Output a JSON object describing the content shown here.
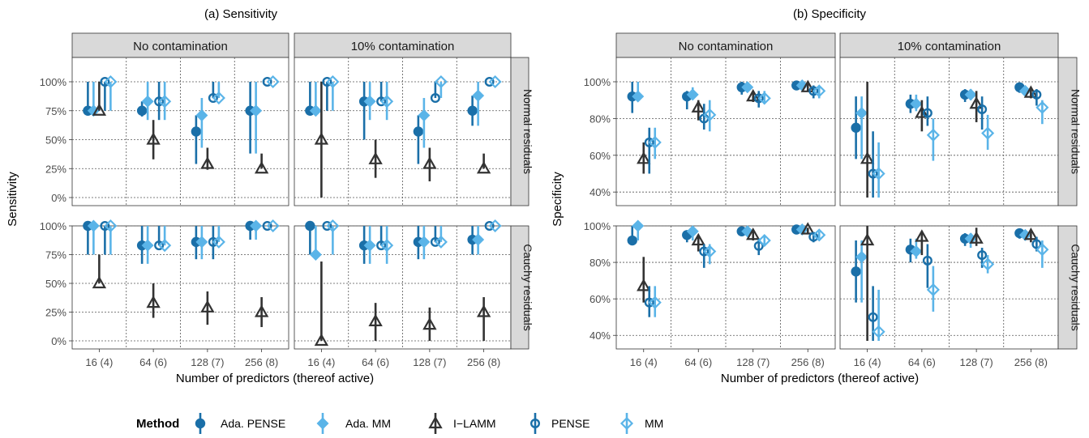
{
  "legend": {
    "title": "Method",
    "items": [
      {
        "label": "Ada. PENSE",
        "color": "#1a6fa8",
        "marker": "filled-circle"
      },
      {
        "label": "Ada. MM",
        "color": "#5ab4e8",
        "marker": "filled-diamond"
      },
      {
        "label": "I−LAMM",
        "color": "#333333",
        "marker": "open-triangle"
      },
      {
        "label": "PENSE",
        "color": "#1a6fa8",
        "marker": "open-circle"
      },
      {
        "label": "MM",
        "color": "#5ab4e8",
        "marker": "open-diamond"
      }
    ]
  },
  "chart_data": [
    {
      "type": "scatter",
      "title": "(a) Sensitivity",
      "xlabel": "Number of predictors (thereof active)",
      "ylabel": "Sensitivity",
      "categories": [
        "16 (4)",
        "64 (6)",
        "128 (7)",
        "256 (8)"
      ],
      "ylim": [
        0,
        1
      ],
      "yticks": [
        "0%",
        "25%",
        "50%",
        "75%",
        "100%"
      ],
      "col_strips": [
        "No contamination",
        "10% contamination"
      ],
      "row_strips": [
        "Normal residuals",
        "Cauchy residuals"
      ],
      "grid": "dotted",
      "series": [
        "Ada. PENSE",
        "Ada. MM",
        "I−LAMM",
        "PENSE",
        "MM"
      ],
      "panels": [
        {
          "row": 0,
          "col": 0,
          "values": [
            [
              [
                0.75,
                0.75,
                1.0
              ],
              [
                0.75,
                0.75,
                1.0
              ],
              [
                0.75,
                0.75,
                1.0
              ],
              [
                1.0,
                0.75,
                1.0
              ],
              [
                1.0,
                0.75,
                1.0
              ]
            ],
            [
              [
                0.75,
                0.7,
                0.83
              ],
              [
                0.83,
                0.67,
                1.0
              ],
              [
                0.5,
                0.33,
                0.67
              ],
              [
                0.83,
                0.67,
                1.0
              ],
              [
                0.83,
                0.67,
                1.0
              ]
            ],
            [
              [
                0.57,
                0.29,
                0.71
              ],
              [
                0.71,
                0.43,
                0.86
              ],
              [
                0.29,
                0.24,
                0.43
              ],
              [
                0.86,
                0.86,
                1.0
              ],
              [
                0.86,
                0.86,
                1.0
              ]
            ],
            [
              [
                0.75,
                0.38,
                1.0
              ],
              [
                0.75,
                0.38,
                1.0
              ],
              [
                0.25,
                0.25,
                0.38
              ],
              [
                1.0,
                1.0,
                1.0
              ],
              [
                1.0,
                1.0,
                1.0
              ]
            ]
          ]
        },
        {
          "row": 0,
          "col": 1,
          "values": [
            [
              [
                0.75,
                0.75,
                1.0
              ],
              [
                0.75,
                0.75,
                1.0
              ],
              [
                0.5,
                0.0,
                1.0
              ],
              [
                1.0,
                0.75,
                1.0
              ],
              [
                1.0,
                0.75,
                1.0
              ]
            ],
            [
              [
                0.83,
                0.5,
                1.0
              ],
              [
                0.83,
                0.67,
                1.0
              ],
              [
                0.33,
                0.17,
                0.5
              ],
              [
                0.83,
                0.83,
                1.0
              ],
              [
                0.83,
                0.67,
                1.0
              ]
            ],
            [
              [
                0.57,
                0.29,
                0.71
              ],
              [
                0.71,
                0.43,
                0.86
              ],
              [
                0.29,
                0.14,
                0.43
              ],
              [
                0.86,
                0.86,
                1.0
              ],
              [
                1.0,
                0.86,
                1.0
              ]
            ],
            [
              [
                0.75,
                0.62,
                0.88
              ],
              [
                0.88,
                0.62,
                1.0
              ],
              [
                0.25,
                0.25,
                0.38
              ],
              [
                1.0,
                1.0,
                1.0
              ],
              [
                1.0,
                1.0,
                1.0
              ]
            ]
          ]
        },
        {
          "row": 1,
          "col": 0,
          "values": [
            [
              [
                1.0,
                0.75,
                1.0
              ],
              [
                1.0,
                0.75,
                1.0
              ],
              [
                0.5,
                0.5,
                0.75
              ],
              [
                1.0,
                0.75,
                1.0
              ],
              [
                1.0,
                0.75,
                1.0
              ]
            ],
            [
              [
                0.83,
                0.67,
                1.0
              ],
              [
                0.83,
                0.67,
                1.0
              ],
              [
                0.33,
                0.2,
                0.5
              ],
              [
                0.83,
                0.83,
                1.0
              ],
              [
                0.83,
                0.83,
                1.0
              ]
            ],
            [
              [
                0.86,
                0.71,
                1.0
              ],
              [
                0.86,
                0.71,
                1.0
              ],
              [
                0.29,
                0.14,
                0.43
              ],
              [
                0.86,
                0.71,
                1.0
              ],
              [
                0.86,
                0.86,
                1.0
              ]
            ],
            [
              [
                1.0,
                0.88,
                1.0
              ],
              [
                1.0,
                0.88,
                1.0
              ],
              [
                0.25,
                0.12,
                0.38
              ],
              [
                1.0,
                1.0,
                1.0
              ],
              [
                1.0,
                1.0,
                1.0
              ]
            ]
          ]
        },
        {
          "row": 1,
          "col": 1,
          "values": [
            [
              [
                1.0,
                0.75,
                1.0
              ],
              [
                0.75,
                0.75,
                1.0
              ],
              [
                0.0,
                0.0,
                0.69
              ],
              [
                1.0,
                1.0,
                1.0
              ],
              [
                1.0,
                0.75,
                1.0
              ]
            ],
            [
              [
                0.83,
                0.67,
                1.0
              ],
              [
                0.83,
                0.67,
                1.0
              ],
              [
                0.17,
                0.0,
                0.33
              ],
              [
                0.83,
                0.83,
                1.0
              ],
              [
                0.83,
                0.67,
                1.0
              ]
            ],
            [
              [
                0.86,
                0.71,
                1.0
              ],
              [
                0.86,
                0.71,
                1.0
              ],
              [
                0.14,
                0.0,
                0.29
              ],
              [
                0.86,
                0.86,
                1.0
              ],
              [
                0.86,
                0.86,
                1.0
              ]
            ],
            [
              [
                0.88,
                0.75,
                1.0
              ],
              [
                0.88,
                0.75,
                1.0
              ],
              [
                0.25,
                0.0,
                0.38
              ],
              [
                1.0,
                1.0,
                1.0
              ],
              [
                1.0,
                1.0,
                1.0
              ]
            ]
          ]
        }
      ]
    },
    {
      "type": "scatter",
      "title": "(b) Specificity",
      "xlabel": "Number of predictors (thereof active)",
      "ylabel": "Specificity",
      "categories": [
        "16 (4)",
        "64 (6)",
        "128 (7)",
        "256 (8)"
      ],
      "ylim": [
        0.37,
        1.0
      ],
      "yticks": [
        "40%",
        "60%",
        "80%",
        "100%"
      ],
      "col_strips": [
        "No contamination",
        "10% contamination"
      ],
      "row_strips": [
        "Normal residuals",
        "Cauchy residuals"
      ],
      "grid": "dotted",
      "series": [
        "Ada. PENSE",
        "Ada. MM",
        "I−LAMM",
        "PENSE",
        "MM"
      ],
      "panels": [
        {
          "row": 0,
          "col": 0,
          "values": [
            [
              [
                0.92,
                0.83,
                1.0
              ],
              [
                0.92,
                0.92,
                1.0
              ],
              [
                0.58,
                0.5,
                0.67
              ],
              [
                0.67,
                0.5,
                0.75
              ],
              [
                0.67,
                0.58,
                0.75
              ]
            ],
            [
              [
                0.92,
                0.85,
                0.95
              ],
              [
                0.93,
                0.91,
                0.97
              ],
              [
                0.86,
                0.79,
                0.9
              ],
              [
                0.8,
                0.74,
                0.88
              ],
              [
                0.82,
                0.73,
                0.9
              ]
            ],
            [
              [
                0.97,
                0.93,
                1.0
              ],
              [
                0.97,
                0.96,
                1.0
              ],
              [
                0.92,
                0.89,
                0.95
              ],
              [
                0.91,
                0.86,
                0.95
              ],
              [
                0.91,
                0.88,
                0.95
              ]
            ],
            [
              [
                0.98,
                0.96,
                0.99
              ],
              [
                0.98,
                0.96,
                0.99
              ],
              [
                0.97,
                0.95,
                0.99
              ],
              [
                0.95,
                0.91,
                0.98
              ],
              [
                0.95,
                0.91,
                0.98
              ]
            ]
          ]
        },
        {
          "row": 0,
          "col": 1,
          "values": [
            [
              [
                0.75,
                0.58,
                0.92
              ],
              [
                0.83,
                0.58,
                0.92
              ],
              [
                0.58,
                0.37,
                1.0
              ],
              [
                0.5,
                0.37,
                0.73
              ],
              [
                0.5,
                0.37,
                0.67
              ]
            ],
            [
              [
                0.88,
                0.83,
                0.93
              ],
              [
                0.88,
                0.84,
                0.93
              ],
              [
                0.83,
                0.73,
                0.9
              ],
              [
                0.83,
                0.76,
                0.92
              ],
              [
                0.71,
                0.57,
                0.8
              ]
            ],
            [
              [
                0.93,
                0.89,
                0.96
              ],
              [
                0.93,
                0.9,
                0.96
              ],
              [
                0.88,
                0.78,
                0.95
              ],
              [
                0.85,
                0.74,
                0.92
              ],
              [
                0.72,
                0.63,
                0.82
              ]
            ],
            [
              [
                0.97,
                0.94,
                0.99
              ],
              [
                0.95,
                0.93,
                0.97
              ],
              [
                0.94,
                0.91,
                0.96
              ],
              [
                0.93,
                0.87,
                0.96
              ],
              [
                0.86,
                0.77,
                0.9
              ]
            ]
          ]
        },
        {
          "row": 1,
          "col": 0,
          "values": [
            [
              [
                0.92,
                0.92,
                1.0
              ],
              [
                1.0,
                0.92,
                1.0
              ],
              [
                0.67,
                0.58,
                0.83
              ],
              [
                0.58,
                0.5,
                0.67
              ],
              [
                0.58,
                0.5,
                0.67
              ]
            ],
            [
              [
                0.95,
                0.91,
                0.97
              ],
              [
                0.97,
                0.92,
                0.98
              ],
              [
                0.92,
                0.86,
                0.94
              ],
              [
                0.86,
                0.77,
                0.9
              ],
              [
                0.86,
                0.79,
                0.9
              ]
            ],
            [
              [
                0.97,
                0.95,
                0.99
              ],
              [
                0.97,
                0.95,
                0.99
              ],
              [
                0.95,
                0.92,
                0.98
              ],
              [
                0.89,
                0.84,
                0.93
              ],
              [
                0.92,
                0.89,
                0.95
              ]
            ],
            [
              [
                0.98,
                0.96,
                0.99
              ],
              [
                0.98,
                0.96,
                0.99
              ],
              [
                0.98,
                0.96,
                0.99
              ],
              [
                0.94,
                0.91,
                0.96
              ],
              [
                0.95,
                0.93,
                0.97
              ]
            ]
          ]
        },
        {
          "row": 1,
          "col": 1,
          "values": [
            [
              [
                0.75,
                0.58,
                0.92
              ],
              [
                0.83,
                0.58,
                0.92
              ],
              [
                0.92,
                0.37,
                1.0
              ],
              [
                0.5,
                0.37,
                0.67
              ],
              [
                0.42,
                0.37,
                0.65
              ]
            ],
            [
              [
                0.87,
                0.8,
                0.93
              ],
              [
                0.86,
                0.82,
                0.93
              ],
              [
                0.94,
                0.84,
                0.97
              ],
              [
                0.81,
                0.66,
                0.9
              ],
              [
                0.65,
                0.53,
                0.78
              ]
            ],
            [
              [
                0.93,
                0.89,
                0.96
              ],
              [
                0.93,
                0.88,
                0.96
              ],
              [
                0.93,
                0.89,
                0.99
              ],
              [
                0.84,
                0.77,
                0.88
              ],
              [
                0.79,
                0.74,
                0.84
              ]
            ],
            [
              [
                0.96,
                0.93,
                0.98
              ],
              [
                0.95,
                0.92,
                0.97
              ],
              [
                0.95,
                0.91,
                0.97
              ],
              [
                0.9,
                0.86,
                0.94
              ],
              [
                0.87,
                0.77,
                0.92
              ]
            ]
          ]
        }
      ]
    }
  ]
}
